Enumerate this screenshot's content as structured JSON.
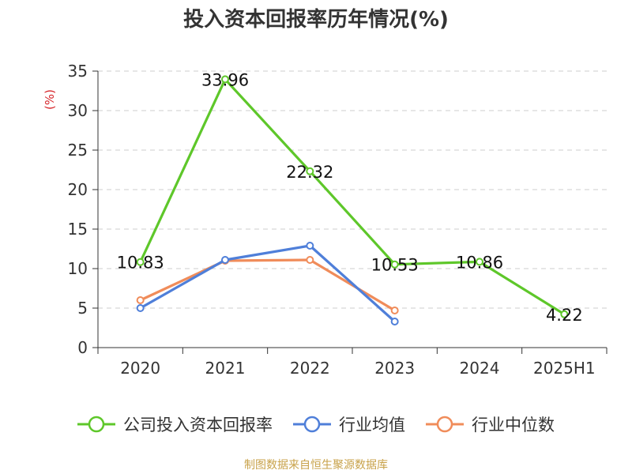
{
  "chart_data": {
    "type": "line",
    "title": "投入资本回报率历年情况(%)",
    "unit_label": "(%)",
    "categories": [
      "2020",
      "2021",
      "2022",
      "2023",
      "2024",
      "2025H1"
    ],
    "ylim": [
      0,
      35
    ],
    "yticks": [
      0,
      5,
      10,
      15,
      20,
      25,
      30,
      35
    ],
    "grid": true,
    "legend_position": "bottom",
    "series": [
      {
        "name": "公司投入资本回报率",
        "color": "#5ec72a",
        "values": [
          10.83,
          33.96,
          22.32,
          10.53,
          10.86,
          4.22
        ],
        "labels": [
          "10.83",
          "33.96",
          "22.32",
          "10.53",
          "10.86",
          "4.22"
        ]
      },
      {
        "name": "行业均值",
        "color": "#4f7fd9",
        "values": [
          5.0,
          11.1,
          12.9,
          3.3,
          null,
          null
        ]
      },
      {
        "name": "行业中位数",
        "color": "#f08c5a",
        "values": [
          6.0,
          11.0,
          11.1,
          4.7,
          null,
          null
        ]
      }
    ]
  },
  "source": "制图数据来自恒生聚源数据库"
}
